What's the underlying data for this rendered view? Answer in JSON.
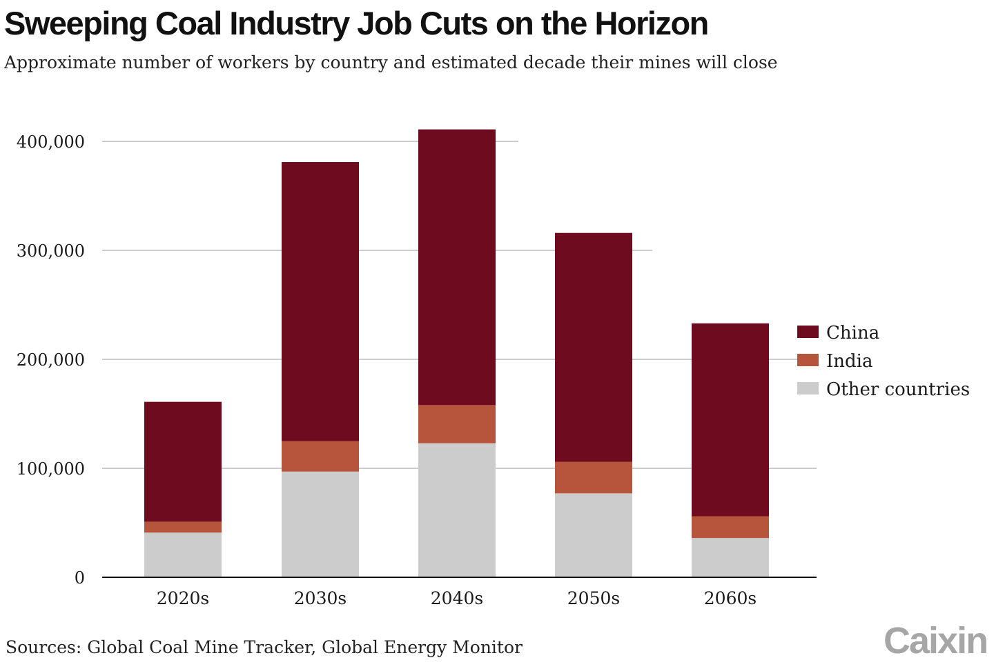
{
  "title": "Sweeping Coal Industry Job Cuts on the Horizon",
  "subtitle": "Approximate number of workers by country and estimated decade their mines will close",
  "source": "Sources: Global Coal Mine Tracker, Global Energy Monitor",
  "brand": "Caixin",
  "colors": {
    "China": "#6e0b1e",
    "India": "#b6553c",
    "Other countries": "#cccccc",
    "gridline": "#999999",
    "axis": "#111111",
    "text": "#1a1a1a"
  },
  "chart_data": {
    "type": "bar",
    "stacked": true,
    "categories": [
      "2020s",
      "2030s",
      "2040s",
      "2050s",
      "2060s"
    ],
    "series": [
      {
        "name": "Other countries",
        "values": [
          41000,
          97000,
          123000,
          77000,
          36000
        ]
      },
      {
        "name": "India",
        "values": [
          10000,
          28000,
          35000,
          29000,
          20000
        ]
      },
      {
        "name": "China",
        "values": [
          110000,
          256000,
          253000,
          210000,
          177000
        ]
      }
    ],
    "legend_order": [
      "China",
      "India",
      "Other countries"
    ],
    "legend_position": "right",
    "yticks": [
      0,
      100000,
      200000,
      300000,
      400000
    ],
    "ytick_labels": [
      "0",
      "100,000",
      "200,000",
      "300,000",
      "400,000"
    ],
    "ylim": [
      0,
      400000
    ],
    "xlabel": "",
    "ylabel": "",
    "grid": true
  }
}
